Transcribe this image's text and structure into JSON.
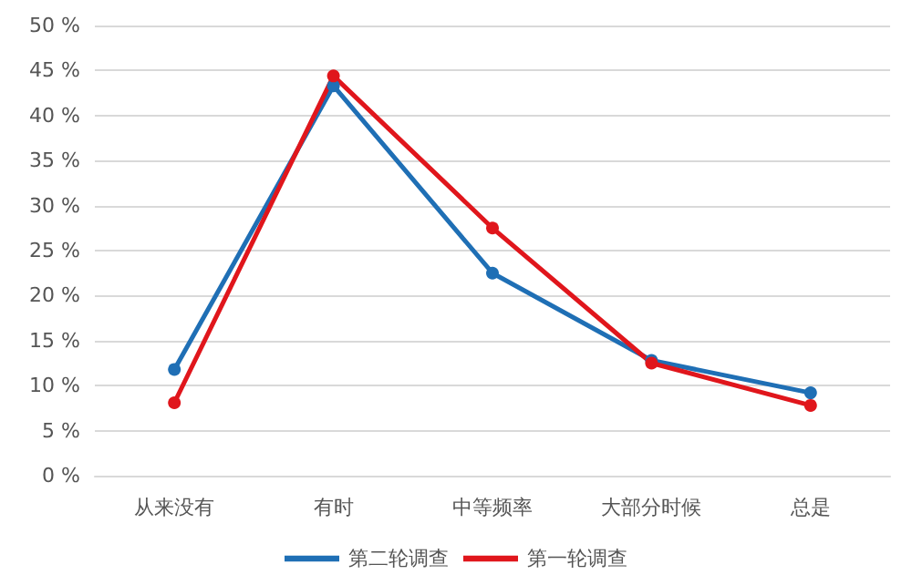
{
  "chart_data": {
    "type": "line",
    "categories": [
      "从来没有",
      "有时",
      "中等频率",
      "大部分时候",
      "总是"
    ],
    "series": [
      {
        "name": "第二轮调查",
        "color": "#1f6fb5",
        "values": [
          11.8,
          43.3,
          22.5,
          12.8,
          9.2
        ]
      },
      {
        "name": "第一轮调查",
        "color": "#e0161c",
        "values": [
          8.1,
          44.4,
          27.5,
          12.5,
          7.8
        ]
      }
    ],
    "ylim": [
      0,
      50
    ],
    "yticks": [
      {
        "value": 0,
        "label": "0 %"
      },
      {
        "value": 5,
        "label": "5 %"
      },
      {
        "value": 10,
        "label": "10 %"
      },
      {
        "value": 15,
        "label": "15 %"
      },
      {
        "value": 20,
        "label": "20 %"
      },
      {
        "value": 25,
        "label": "25 %"
      },
      {
        "value": 30,
        "label": "30 %"
      },
      {
        "value": 35,
        "label": "35 %"
      },
      {
        "value": 40,
        "label": "40 %"
      },
      {
        "value": 45,
        "label": "45 %"
      },
      {
        "value": 50,
        "label": "50 %"
      }
    ],
    "grid": "y",
    "legend": "bottom",
    "marker": "circle",
    "line_style": "solid"
  }
}
